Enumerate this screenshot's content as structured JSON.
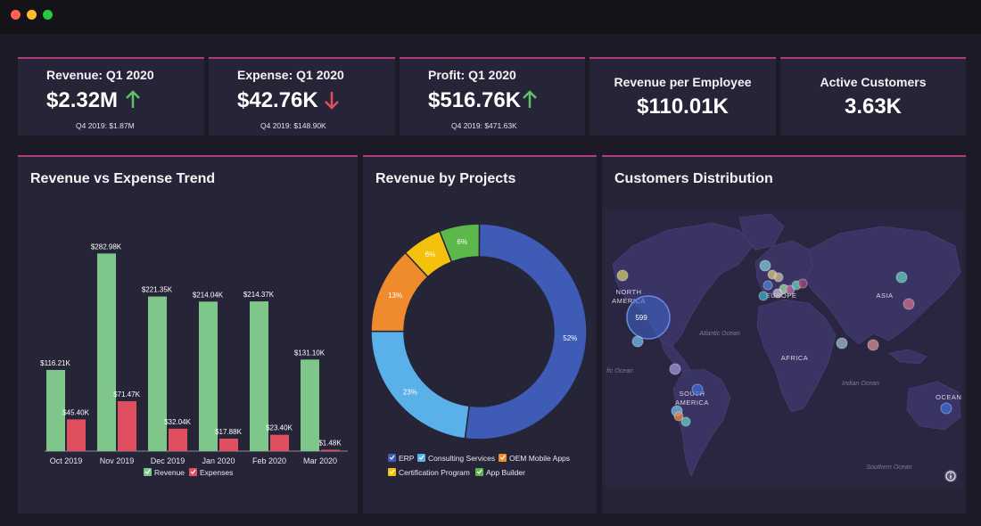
{
  "window": {
    "controls": [
      "close",
      "minimize",
      "maximize"
    ]
  },
  "kpis": [
    {
      "title": "Revenue: Q1 2020",
      "value": "$2.32M",
      "trend": "up",
      "previous": "Q4 2019: $1.87M"
    },
    {
      "title": "Expense: Q1 2020",
      "value": "$42.76K",
      "trend": "down",
      "previous": "Q4 2019: $148.90K"
    },
    {
      "title": "Profit: Q1 2020",
      "value": "$516.76K",
      "trend": "up",
      "previous": "Q4 2019: $471.63K"
    },
    {
      "title": "Revenue per Employee",
      "value": "$110.01K"
    },
    {
      "title": "Active Customers",
      "value": "3.63K"
    }
  ],
  "panels": {
    "trend_title": "Revenue vs Expense Trend",
    "projects_title": "Revenue by Projects",
    "map_title": "Customers Distribution"
  },
  "colors": {
    "revenue": "#7ec68a",
    "expenses": "#e04f5f",
    "erp": "#3e5cb5",
    "consulting": "#5ab0e8",
    "oem": "#ef8b2c",
    "certification": "#f4c20d",
    "app_builder": "#5cb84a",
    "accent": "#b23a7e"
  },
  "chart_data": [
    {
      "type": "bar",
      "categories": [
        "Oct 2019",
        "Nov 2019",
        "Dec 2019",
        "Jan 2020",
        "Feb 2020",
        "Mar 2020"
      ],
      "series": [
        {
          "name": "Revenue",
          "values": [
            116.21,
            282.98,
            221.35,
            214.04,
            214.37,
            131.1
          ],
          "labels": [
            "$116.21K",
            "$282.98K",
            "$221.35K",
            "$214.04K",
            "$214.37K",
            "$131.10K"
          ]
        },
        {
          "name": "Expenses",
          "values": [
            45.4,
            71.47,
            32.04,
            17.88,
            23.4,
            1.48
          ],
          "labels": [
            "$45.40K",
            "$71.47K",
            "$32.04K",
            "$17.88K",
            "$23.40K",
            "$1.48K"
          ]
        }
      ],
      "ylim": [
        0,
        300
      ],
      "legend": "bottom"
    },
    {
      "type": "pie",
      "donut": true,
      "slices": [
        {
          "name": "ERP",
          "value": 52,
          "label": "52%"
        },
        {
          "name": "Consulting Services",
          "value": 23,
          "label": "23%"
        },
        {
          "name": "OEM Mobile Apps",
          "value": 13,
          "label": "13%"
        },
        {
          "name": "Certification Program",
          "value": 6,
          "label": "6%"
        },
        {
          "name": "App Builder",
          "value": 6,
          "label": "6%"
        }
      ],
      "legend": "bottom"
    }
  ],
  "map": {
    "labels": {
      "north_america": "NORTH\nAMERICA",
      "south_america": "SOUTH\nAMERICA",
      "europe": "EUROPE",
      "africa": "AFRICA",
      "asia": "ASIA",
      "oceania": "OCEANI",
      "atlantic": "Atlantic Ocean",
      "pacific": "fic Ocean",
      "indian": "Indian Ocean",
      "southern": "Southern Ocean"
    },
    "cluster_count": "599",
    "info_icon": "info-icon"
  }
}
